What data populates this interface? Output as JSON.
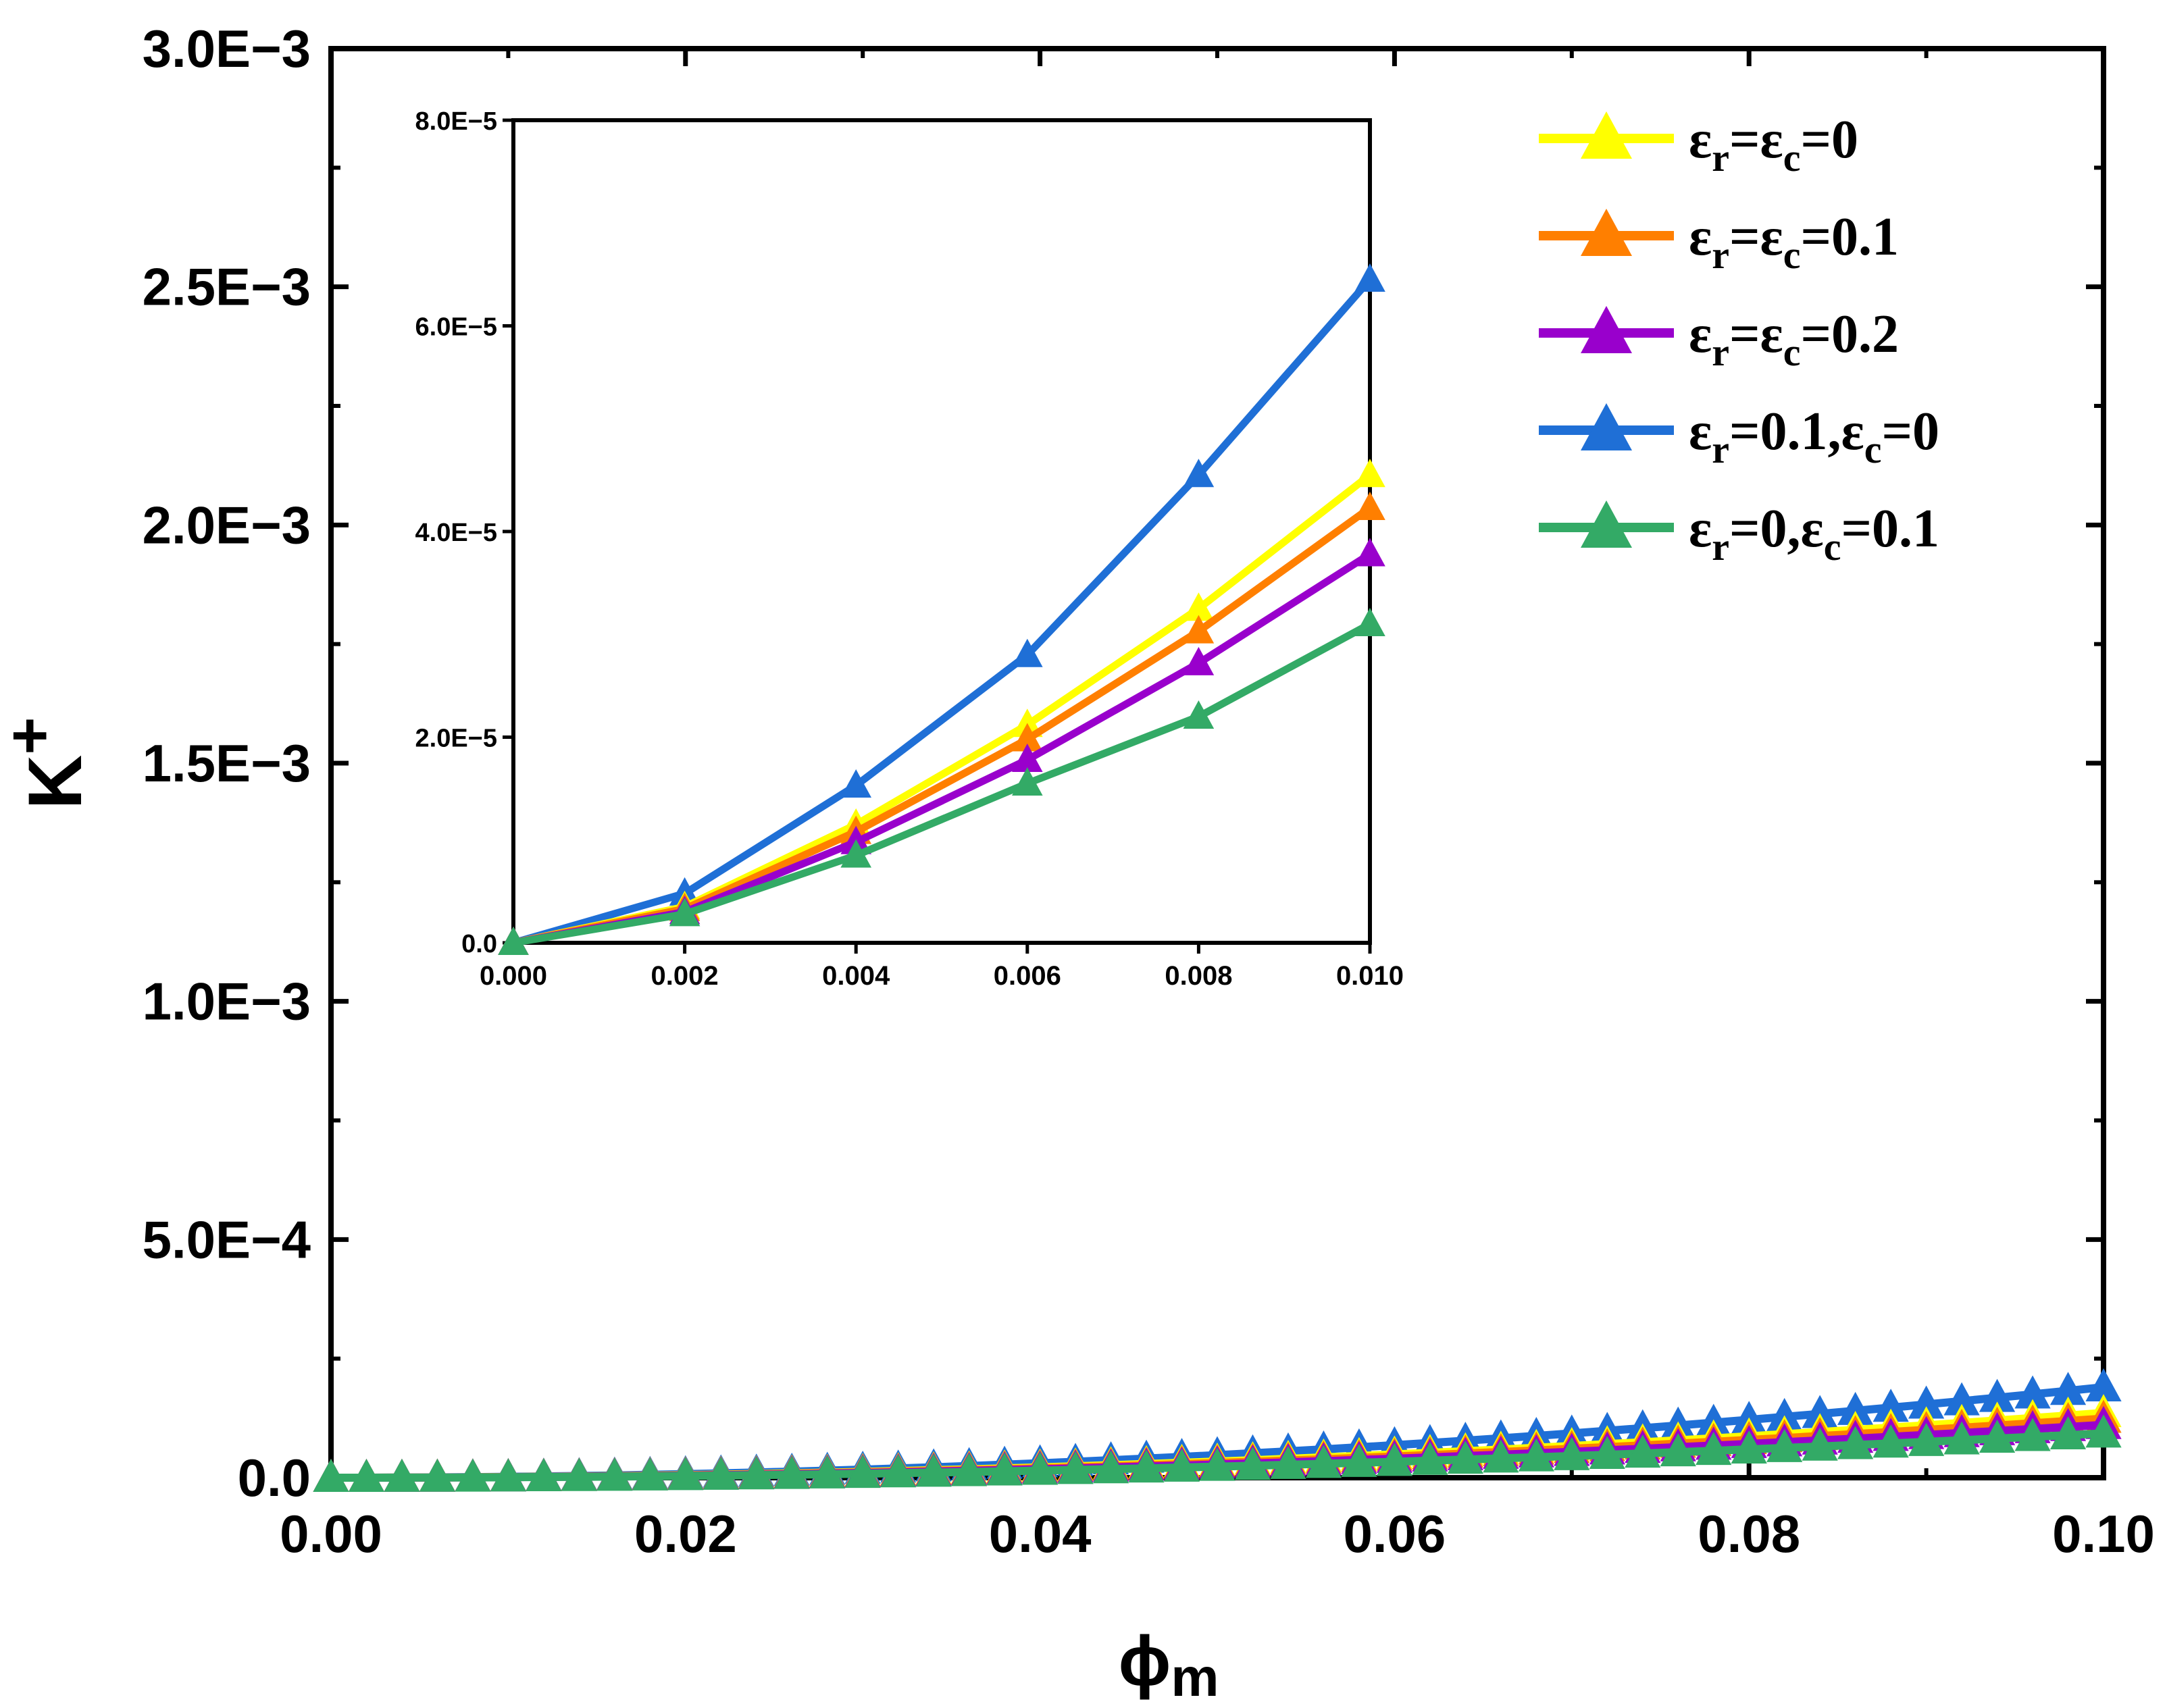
{
  "chart_data": {
    "type": "line",
    "xlabel": "ϕ",
    "xlabel_sub": "m",
    "ylabel": "K",
    "ylabel_sup": "+",
    "xlim": [
      0,
      0.1
    ],
    "ylim": [
      0,
      0.003
    ],
    "x_tick_values": [
      0,
      0.02,
      0.04,
      0.06,
      0.08,
      0.1
    ],
    "x_tick_labels": [
      "0.00",
      "0.02",
      "0.04",
      "0.06",
      "0.08",
      "0.10"
    ],
    "y_tick_values": [
      0,
      0.0005,
      0.001,
      0.0015,
      0.002,
      0.0025,
      0.003
    ],
    "y_tick_labels": [
      "0.0",
      "5.0E−4",
      "1.0E−3",
      "1.5E−3",
      "2.0E−3",
      "2.5E−3",
      "3.0E−3"
    ],
    "grid": false,
    "legend_position": "top-right",
    "marker": "triangle",
    "series": [
      {
        "name": "εr=εc=0",
        "legend_parts": [
          [
            "ε",
            ""
          ],
          [
            "r",
            "sub"
          ],
          [
            "=ε",
            ""
          ],
          [
            "c",
            "sub"
          ],
          [
            "=0",
            ""
          ]
        ],
        "color": "#ffff00",
        "b": 0.0136
      },
      {
        "name": "εr=εc=0.1",
        "legend_parts": [
          [
            "ε",
            ""
          ],
          [
            "r",
            "sub"
          ],
          [
            "=ε",
            ""
          ],
          [
            "c",
            "sub"
          ],
          [
            "=0.1",
            ""
          ]
        ],
        "color": "#ff7f00",
        "b": 0.0124
      },
      {
        "name": "εr=εc=0.2",
        "legend_parts": [
          [
            "ε",
            ""
          ],
          [
            "r",
            "sub"
          ],
          [
            "=ε",
            ""
          ],
          [
            "c",
            "sub"
          ],
          [
            "=0.2",
            ""
          ]
        ],
        "color": "#9900cc",
        "b": 0.0111
      },
      {
        "name": "εr=0.1,εc=0",
        "legend_parts": [
          [
            "ε",
            ""
          ],
          [
            "r",
            "sub"
          ],
          [
            "=0.1,ε",
            ""
          ],
          [
            "c",
            "sub"
          ],
          [
            "=0",
            ""
          ]
        ],
        "color": "#1f6fd6",
        "b": 0.019
      },
      {
        "name": "εr=0,εc=0.1",
        "legend_parts": [
          [
            "ε",
            ""
          ],
          [
            "r",
            "sub"
          ],
          [
            "=0,ε",
            ""
          ],
          [
            "c",
            "sub"
          ],
          [
            "=0.1",
            ""
          ]
        ],
        "color": "#33aa66",
        "b": 0.0093
      }
    ],
    "main_x_step": 0.002,
    "inset": {
      "xlim": [
        0,
        0.01
      ],
      "ylim": [
        0,
        8e-05
      ],
      "x_tick_values": [
        0,
        0.002,
        0.004,
        0.006,
        0.008,
        0.01
      ],
      "x_tick_labels": [
        "0.000",
        "0.002",
        "0.004",
        "0.006",
        "0.008",
        "0.010"
      ],
      "y_tick_values": [
        0,
        2e-05,
        4e-05,
        6e-05,
        8e-05
      ],
      "y_tick_labels": [
        "0.0",
        "2.0E−5",
        "4.0E−5",
        "6.0E−5",
        "8.0E−5"
      ],
      "x": [
        0,
        0.002,
        0.004,
        0.006,
        0.008,
        0.01
      ],
      "series_values": [
        [
          0,
          3.5e-06,
          1.15e-05,
          2.12e-05,
          3.25e-05,
          4.55e-05
        ],
        [
          0,
          3.3e-06,
          1.08e-05,
          1.98e-05,
          3.03e-05,
          4.23e-05
        ],
        [
          0,
          3e-06,
          9.8e-06,
          1.78e-05,
          2.72e-05,
          3.78e-05
        ],
        [
          0,
          4.8e-06,
          1.53e-05,
          2.8e-05,
          4.55e-05,
          6.45e-05
        ],
        [
          0,
          2.8e-06,
          8.5e-06,
          1.55e-05,
          2.2e-05,
          3.1e-05
        ]
      ]
    }
  }
}
